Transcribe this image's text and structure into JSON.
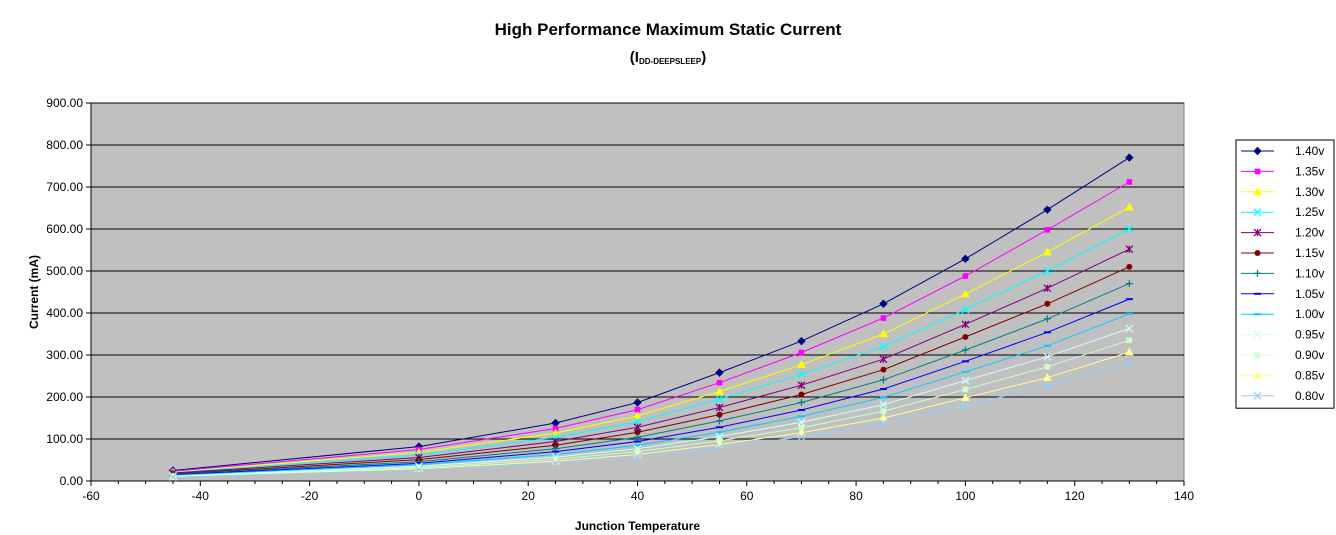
{
  "chart_data": {
    "type": "line",
    "title": "High Performance Maximum Static Current",
    "subtitle": {
      "open": "(I",
      "subscript": "DD-DEEPSLEEP",
      "close": ")"
    },
    "xlabel": "Junction Temperature",
    "ylabel": "Current (mA)",
    "xlim": [
      -60,
      140
    ],
    "ylim": [
      0,
      900
    ],
    "x_ticks": [
      "-60",
      "-40",
      "-20",
      "0",
      "20",
      "40",
      "60",
      "80",
      "100",
      "120",
      "140"
    ],
    "y_ticks": [
      "0.00",
      "100.00",
      "200.00",
      "300.00",
      "400.00",
      "500.00",
      "600.00",
      "700.00",
      "800.00",
      "900.00"
    ],
    "grid": "horizontal",
    "plot_background": "#c0c0c0",
    "legend_position": "right",
    "x": [
      -45,
      0,
      25,
      40,
      55,
      70,
      85,
      100,
      115,
      130
    ],
    "series": [
      {
        "name": "1.40v",
        "color": "#000080",
        "marker": "diamond",
        "values": [
          25,
          82,
          138,
          187,
          258,
          333,
          422,
          529,
          646,
          770
        ]
      },
      {
        "name": "1.35v",
        "color": "#ff00ff",
        "marker": "square",
        "values": [
          23,
          75,
          125,
          170,
          234,
          306,
          388,
          488,
          598,
          712
        ]
      },
      {
        "name": "1.30v",
        "color": "#ffff00",
        "marker": "triangle",
        "values": [
          21,
          68,
          114,
          155,
          213,
          277,
          350,
          445,
          545,
          652
        ]
      },
      {
        "name": "1.25v",
        "color": "#00ffff",
        "marker": "x",
        "values": [
          20,
          62,
          104,
          141,
          195,
          254,
          320,
          408,
          500,
          600
        ]
      },
      {
        "name": "1.20v",
        "color": "#800080",
        "marker": "star",
        "values": [
          19,
          56,
          94,
          128,
          175,
          228,
          290,
          373,
          459,
          552
        ]
      },
      {
        "name": "1.15v",
        "color": "#800000",
        "marker": "circle",
        "values": [
          17,
          51,
          85,
          116,
          158,
          206,
          265,
          343,
          422,
          510
        ]
      },
      {
        "name": "1.10v",
        "color": "#008080",
        "marker": "plus",
        "values": [
          16,
          46,
          77,
          104,
          143,
          187,
          241,
          312,
          386,
          470
        ]
      },
      {
        "name": "1.05v",
        "color": "#0000ff",
        "marker": "dash",
        "values": [
          15,
          42,
          70,
          94,
          128,
          169,
          219,
          285,
          354,
          433
        ]
      },
      {
        "name": "1.00v",
        "color": "#00ccff",
        "marker": "dash",
        "values": [
          13,
          39,
          63,
          85,
          116,
          154,
          199,
          260,
          322,
          398
        ]
      },
      {
        "name": "0.95v",
        "color": "#ccffff",
        "marker": "x",
        "values": [
          12,
          35,
          57,
          77,
          106,
          140,
          182,
          239,
          296,
          363
        ]
      },
      {
        "name": "0.90v",
        "color": "#ccffcc",
        "marker": "square",
        "values": [
          11,
          32,
          52,
          70,
          96,
          127,
          166,
          218,
          272,
          335
        ]
      },
      {
        "name": "0.85v",
        "color": "#ffff99",
        "marker": "triangle",
        "values": [
          10,
          29,
          47,
          63,
          87,
          115,
          150,
          198,
          246,
          307
        ]
      },
      {
        "name": "0.80v",
        "color": "#99ccff",
        "marker": "x",
        "values": [
          9,
          27,
          43,
          58,
          80,
          105,
          137,
          180,
          226,
          280
        ]
      }
    ]
  }
}
